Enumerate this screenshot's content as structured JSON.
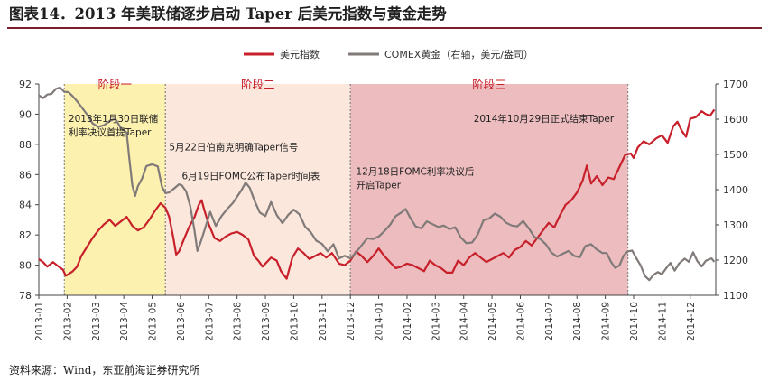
{
  "title": "图表14．2013 年美联储逐步启动 Taper 后美元指数与黄金走势",
  "source": "资料来源：Wind，东亚前海证券研究所",
  "chart_data": {
    "type": "line",
    "x": [
      "2013-01",
      "2013-02",
      "2013-03",
      "2013-04",
      "2013-05",
      "2013-06",
      "2013-07",
      "2013-08",
      "2013-09",
      "2013-10",
      "2013-11",
      "2013-12",
      "2014-01",
      "2014-02",
      "2014-03",
      "2014-04",
      "2014-05",
      "2014-06",
      "2014-07",
      "2014-08",
      "2014-09",
      "2014-10",
      "2014-11",
      "2014-12"
    ],
    "x_domain": [
      0,
      23.9
    ],
    "y_left": {
      "label": "美元指数",
      "range": [
        78,
        92
      ],
      "ticks": [
        78,
        80,
        82,
        84,
        86,
        88,
        90,
        92
      ]
    },
    "y_right": {
      "label": "COMEX黄金（右轴，美元/盎司）",
      "range": [
        1100,
        1700
      ],
      "ticks": [
        1100,
        1200,
        1300,
        1400,
        1500,
        1600,
        1700
      ]
    },
    "legend": [
      "美元指数",
      "COMEX黄金（右轴，美元/盎司）"
    ],
    "colors": {
      "usd": "#c8202b",
      "gold": "#807a79",
      "phase1": "#fdf1b0",
      "phase2": "#fbe7dc",
      "phase3": "#ecbcbe"
    },
    "phases": [
      {
        "label": "阶段一",
        "start": 0.9,
        "end": 4.47
      },
      {
        "label": "阶段二",
        "start": 4.47,
        "end": 11.0
      },
      {
        "label": "阶段三",
        "start": 11.0,
        "end": 20.8
      }
    ],
    "annotations": [
      {
        "lines": [
          "2013年1月30日联储",
          "利率决议首提Taper"
        ],
        "x": 1.05,
        "y_left": 89.5
      },
      {
        "lines": [
          "5月22日伯南克明确Taper信号"
        ],
        "x": 4.6,
        "y_left": 87.6
      },
      {
        "lines": [
          "6月19日FOMC公布Taper时间表"
        ],
        "x": 5.05,
        "y_left": 85.7
      },
      {
        "lines": [
          "12月18日FOMC利率决议后",
          "开启Taper"
        ],
        "x": 11.2,
        "y_left": 86.0
      },
      {
        "lines": [
          "2014年10月29日正式结束Taper"
        ],
        "x": 15.35,
        "y_left": 89.5
      }
    ],
    "series": [
      {
        "name": "美元指数",
        "axis": "left",
        "points": [
          [
            0.0,
            80.4
          ],
          [
            0.15,
            80.2
          ],
          [
            0.3,
            79.9
          ],
          [
            0.5,
            80.2
          ],
          [
            0.7,
            79.9
          ],
          [
            0.85,
            79.7
          ],
          [
            0.95,
            79.3
          ],
          [
            1.05,
            79.4
          ],
          [
            1.2,
            79.6
          ],
          [
            1.35,
            79.9
          ],
          [
            1.5,
            80.6
          ],
          [
            1.7,
            81.2
          ],
          [
            1.9,
            81.8
          ],
          [
            2.1,
            82.3
          ],
          [
            2.3,
            82.7
          ],
          [
            2.5,
            83.0
          ],
          [
            2.7,
            82.6
          ],
          [
            2.9,
            82.9
          ],
          [
            3.1,
            83.2
          ],
          [
            3.3,
            82.6
          ],
          [
            3.5,
            82.3
          ],
          [
            3.7,
            82.5
          ],
          [
            3.9,
            83.0
          ],
          [
            4.1,
            83.6
          ],
          [
            4.3,
            84.1
          ],
          [
            4.47,
            83.8
          ],
          [
            4.6,
            83.2
          ],
          [
            4.75,
            81.8
          ],
          [
            4.85,
            80.7
          ],
          [
            4.95,
            80.9
          ],
          [
            5.1,
            81.6
          ],
          [
            5.3,
            82.5
          ],
          [
            5.5,
            83.2
          ],
          [
            5.65,
            84.0
          ],
          [
            5.75,
            84.3
          ],
          [
            5.85,
            83.6
          ],
          [
            6.0,
            82.7
          ],
          [
            6.2,
            81.8
          ],
          [
            6.4,
            81.6
          ],
          [
            6.6,
            81.9
          ],
          [
            6.8,
            82.1
          ],
          [
            7.0,
            82.2
          ],
          [
            7.2,
            82.0
          ],
          [
            7.4,
            81.7
          ],
          [
            7.6,
            80.6
          ],
          [
            7.75,
            80.3
          ],
          [
            7.9,
            79.9
          ],
          [
            8.05,
            80.2
          ],
          [
            8.2,
            80.5
          ],
          [
            8.4,
            80.3
          ],
          [
            8.55,
            79.6
          ],
          [
            8.75,
            79.1
          ],
          [
            8.95,
            80.5
          ],
          [
            9.15,
            81.1
          ],
          [
            9.35,
            80.8
          ],
          [
            9.55,
            80.4
          ],
          [
            9.75,
            80.6
          ],
          [
            9.95,
            80.8
          ],
          [
            10.15,
            80.5
          ],
          [
            10.35,
            80.8
          ],
          [
            10.6,
            80.1
          ],
          [
            10.8,
            80.0
          ],
          [
            11.0,
            80.3
          ],
          [
            11.2,
            80.9
          ],
          [
            11.4,
            80.6
          ],
          [
            11.6,
            80.2
          ],
          [
            11.8,
            80.6
          ],
          [
            12.0,
            81.1
          ],
          [
            12.2,
            80.6
          ],
          [
            12.4,
            80.2
          ],
          [
            12.6,
            79.8
          ],
          [
            12.8,
            79.9
          ],
          [
            13.0,
            80.1
          ],
          [
            13.2,
            80.0
          ],
          [
            13.4,
            79.8
          ],
          [
            13.6,
            79.6
          ],
          [
            13.8,
            80.3
          ],
          [
            14.0,
            80.0
          ],
          [
            14.2,
            79.8
          ],
          [
            14.4,
            79.5
          ],
          [
            14.6,
            79.5
          ],
          [
            14.8,
            80.3
          ],
          [
            15.0,
            80.0
          ],
          [
            15.2,
            80.5
          ],
          [
            15.4,
            80.8
          ],
          [
            15.6,
            80.5
          ],
          [
            15.8,
            80.2
          ],
          [
            16.0,
            80.4
          ],
          [
            16.2,
            80.6
          ],
          [
            16.4,
            80.8
          ],
          [
            16.6,
            80.5
          ],
          [
            16.8,
            81.0
          ],
          [
            17.0,
            81.2
          ],
          [
            17.2,
            81.6
          ],
          [
            17.4,
            81.3
          ],
          [
            17.6,
            81.8
          ],
          [
            17.8,
            82.3
          ],
          [
            18.0,
            82.8
          ],
          [
            18.2,
            82.5
          ],
          [
            18.4,
            83.3
          ],
          [
            18.6,
            84.0
          ],
          [
            18.8,
            84.3
          ],
          [
            19.0,
            84.8
          ],
          [
            19.2,
            85.6
          ],
          [
            19.35,
            86.6
          ],
          [
            19.5,
            85.4
          ],
          [
            19.7,
            85.9
          ],
          [
            19.9,
            85.3
          ],
          [
            20.1,
            85.8
          ],
          [
            20.3,
            85.7
          ],
          [
            20.5,
            86.5
          ],
          [
            20.7,
            87.3
          ],
          [
            20.9,
            87.4
          ],
          [
            21.0,
            87.1
          ],
          [
            21.15,
            87.8
          ],
          [
            21.35,
            88.2
          ],
          [
            21.55,
            88.0
          ],
          [
            21.8,
            88.4
          ],
          [
            22.0,
            88.6
          ],
          [
            22.2,
            88.1
          ],
          [
            22.4,
            89.2
          ],
          [
            22.55,
            89.5
          ],
          [
            22.7,
            88.9
          ],
          [
            22.85,
            88.5
          ],
          [
            23.0,
            89.7
          ],
          [
            23.2,
            89.8
          ],
          [
            23.4,
            90.2
          ],
          [
            23.55,
            90.0
          ],
          [
            23.7,
            89.9
          ],
          [
            23.85,
            90.3
          ]
        ]
      },
      {
        "name": "COMEX黄金（右轴，美元/盎司）",
        "axis": "right",
        "points": [
          [
            0.0,
            1668
          ],
          [
            0.15,
            1660
          ],
          [
            0.3,
            1670
          ],
          [
            0.45,
            1672
          ],
          [
            0.6,
            1686
          ],
          [
            0.75,
            1690
          ],
          [
            0.9,
            1678
          ],
          [
            1.05,
            1677
          ],
          [
            1.2,
            1665
          ],
          [
            1.35,
            1651
          ],
          [
            1.5,
            1635
          ],
          [
            1.7,
            1614
          ],
          [
            1.9,
            1588
          ],
          [
            2.1,
            1578
          ],
          [
            2.3,
            1583
          ],
          [
            2.5,
            1595
          ],
          [
            2.7,
            1601
          ],
          [
            2.9,
            1575
          ],
          [
            3.1,
            1562
          ],
          [
            3.2,
            1485
          ],
          [
            3.3,
            1412
          ],
          [
            3.4,
            1382
          ],
          [
            3.5,
            1410
          ],
          [
            3.65,
            1432
          ],
          [
            3.8,
            1467
          ],
          [
            4.0,
            1472
          ],
          [
            4.2,
            1466
          ],
          [
            4.35,
            1408
          ],
          [
            4.47,
            1390
          ],
          [
            4.6,
            1392
          ],
          [
            4.8,
            1405
          ],
          [
            4.95,
            1415
          ],
          [
            5.05,
            1412
          ],
          [
            5.2,
            1395
          ],
          [
            5.35,
            1352
          ],
          [
            5.5,
            1282
          ],
          [
            5.6,
            1226
          ],
          [
            5.7,
            1248
          ],
          [
            5.85,
            1285
          ],
          [
            6.05,
            1337
          ],
          [
            6.25,
            1297
          ],
          [
            6.45,
            1325
          ],
          [
            6.65,
            1345
          ],
          [
            6.85,
            1362
          ],
          [
            7.0,
            1380
          ],
          [
            7.15,
            1398
          ],
          [
            7.3,
            1420
          ],
          [
            7.45,
            1405
          ],
          [
            7.6,
            1372
          ],
          [
            7.8,
            1335
          ],
          [
            8.0,
            1325
          ],
          [
            8.2,
            1365
          ],
          [
            8.4,
            1328
          ],
          [
            8.6,
            1305
          ],
          [
            8.8,
            1328
          ],
          [
            9.0,
            1343
          ],
          [
            9.2,
            1330
          ],
          [
            9.4,
            1295
          ],
          [
            9.6,
            1279
          ],
          [
            9.8,
            1255
          ],
          [
            10.0,
            1246
          ],
          [
            10.2,
            1225
          ],
          [
            10.4,
            1245
          ],
          [
            10.6,
            1205
          ],
          [
            10.8,
            1212
          ],
          [
            11.0,
            1205
          ],
          [
            11.2,
            1222
          ],
          [
            11.4,
            1242
          ],
          [
            11.6,
            1262
          ],
          [
            11.8,
            1260
          ],
          [
            12.0,
            1267
          ],
          [
            12.2,
            1282
          ],
          [
            12.4,
            1300
          ],
          [
            12.6,
            1325
          ],
          [
            12.8,
            1335
          ],
          [
            12.95,
            1345
          ],
          [
            13.1,
            1322
          ],
          [
            13.3,
            1296
          ],
          [
            13.5,
            1290
          ],
          [
            13.7,
            1310
          ],
          [
            13.9,
            1302
          ],
          [
            14.1,
            1294
          ],
          [
            14.3,
            1298
          ],
          [
            14.5,
            1288
          ],
          [
            14.7,
            1293
          ],
          [
            14.9,
            1264
          ],
          [
            15.1,
            1248
          ],
          [
            15.3,
            1250
          ],
          [
            15.5,
            1273
          ],
          [
            15.7,
            1313
          ],
          [
            15.9,
            1318
          ],
          [
            16.1,
            1332
          ],
          [
            16.3,
            1323
          ],
          [
            16.5,
            1306
          ],
          [
            16.7,
            1298
          ],
          [
            16.9,
            1296
          ],
          [
            17.1,
            1311
          ],
          [
            17.3,
            1290
          ],
          [
            17.5,
            1265
          ],
          [
            17.7,
            1260
          ],
          [
            17.9,
            1245
          ],
          [
            18.1,
            1221
          ],
          [
            18.3,
            1210
          ],
          [
            18.5,
            1218
          ],
          [
            18.7,
            1226
          ],
          [
            18.9,
            1212
          ],
          [
            19.1,
            1208
          ],
          [
            19.3,
            1240
          ],
          [
            19.5,
            1245
          ],
          [
            19.7,
            1230
          ],
          [
            19.9,
            1220
          ],
          [
            20.05,
            1220
          ],
          [
            20.2,
            1195
          ],
          [
            20.35,
            1178
          ],
          [
            20.5,
            1185
          ],
          [
            20.65,
            1213
          ],
          [
            20.8,
            1225
          ],
          [
            20.95,
            1227
          ],
          [
            21.1,
            1205
          ],
          [
            21.25,
            1185
          ],
          [
            21.4,
            1155
          ],
          [
            21.55,
            1143
          ],
          [
            21.7,
            1158
          ],
          [
            21.85,
            1166
          ],
          [
            22.0,
            1160
          ],
          [
            22.15,
            1177
          ],
          [
            22.3,
            1192
          ],
          [
            22.45,
            1170
          ],
          [
            22.6,
            1190
          ],
          [
            22.8,
            1204
          ],
          [
            22.95,
            1195
          ],
          [
            23.1,
            1222
          ],
          [
            23.25,
            1197
          ],
          [
            23.4,
            1182
          ],
          [
            23.55,
            1198
          ],
          [
            23.75,
            1205
          ],
          [
            23.85,
            1195
          ]
        ]
      }
    ]
  }
}
